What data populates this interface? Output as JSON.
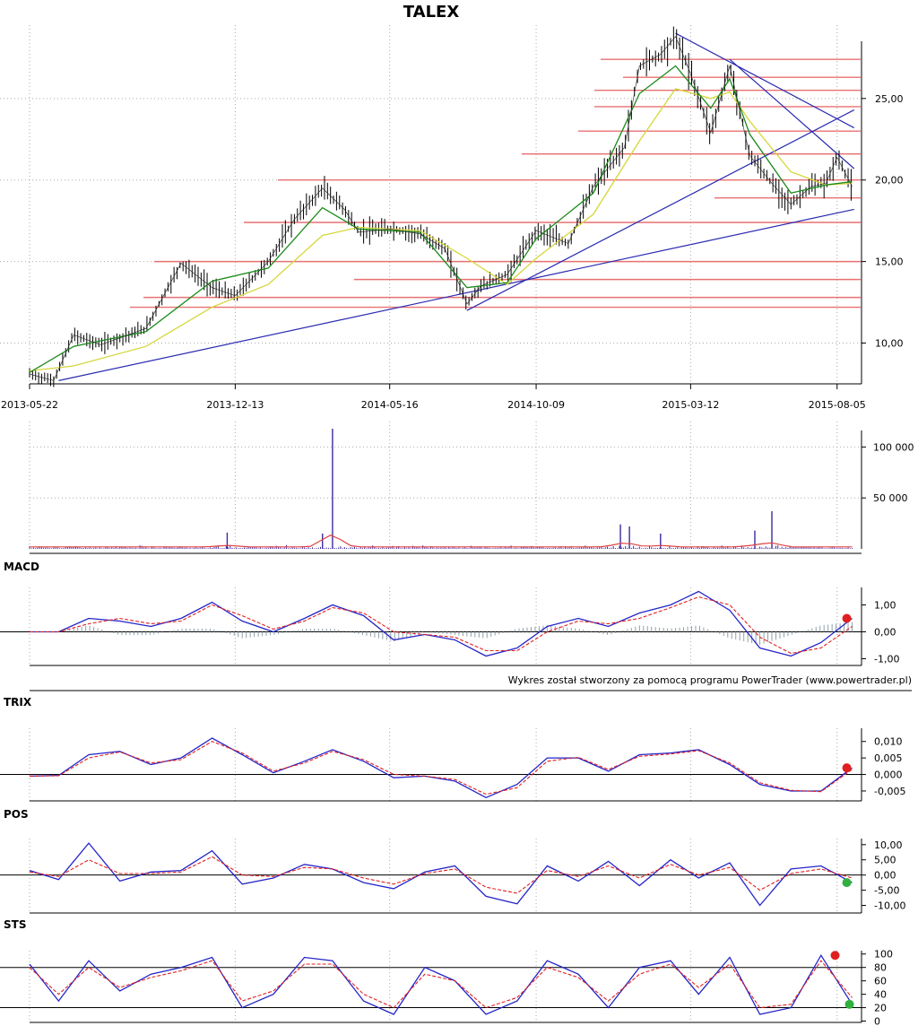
{
  "title": "TALEX",
  "footer_note": "Wykres został stworzony za pomocą programu PowerTrader (www.powertrader.pl)",
  "colors": {
    "candle": "#000000",
    "sma_short": "#1a8a1a",
    "sma_long": "#d6d63a",
    "support_line": "#e87070",
    "trend_line": "#2a2ab0",
    "volume_bar": "#3a2aa0",
    "volume_avg": "#e04040",
    "indicator_main": "#2424c8",
    "indicator_signal": "#e02020",
    "dot_red": "#e02020",
    "dot_green": "#30b040",
    "grid": "#aaaaaa"
  },
  "chart_data": [
    {
      "type": "line",
      "panel": "price",
      "title": "TALEX",
      "x_tick_labels": [
        "2013-05-22",
        "2013-12-13",
        "2014-05-16",
        "2014-10-09",
        "2015-03-12",
        "2015-08-05"
      ],
      "y_tick_labels": [
        "10,00",
        "15,00",
        "20,00",
        "25,00"
      ],
      "ylim": [
        7.5,
        29.5
      ],
      "grid": true,
      "series": [
        {
          "role": "close",
          "x": [
            "2013-05-22",
            "2013-06-15",
            "2013-07-05",
            "2013-08-01",
            "2013-09-15",
            "2013-10-20",
            "2013-11-20",
            "2013-12-13",
            "2014-01-15",
            "2014-02-10",
            "2014-03-10",
            "2014-04-01",
            "2014-04-15",
            "2014-05-16",
            "2014-06-15",
            "2014-07-10",
            "2014-08-01",
            "2014-08-15",
            "2014-09-10",
            "2014-10-09",
            "2014-11-10",
            "2014-12-05",
            "2015-01-05",
            "2015-01-20",
            "2015-02-10",
            "2015-02-25",
            "2015-03-12",
            "2015-04-01",
            "2015-04-20",
            "2015-05-10",
            "2015-06-01",
            "2015-06-20",
            "2015-07-10",
            "2015-07-25",
            "2015-08-05",
            "2015-08-20"
          ],
          "y": [
            8.1,
            7.7,
            10.5,
            9.9,
            10.9,
            14.9,
            13.4,
            12.9,
            15.0,
            17.6,
            19.5,
            18.2,
            16.8,
            17.0,
            16.7,
            15.8,
            12.4,
            13.5,
            14.2,
            16.9,
            16.1,
            19.6,
            22.0,
            27.0,
            27.7,
            28.8,
            26.5,
            22.9,
            27.0,
            21.5,
            19.8,
            18.5,
            19.6,
            19.8,
            21.4,
            19.6
          ]
        },
        {
          "role": "average-short",
          "x": [
            "2013-05-22",
            "2013-07-05",
            "2013-09-15",
            "2013-11-20",
            "2014-01-15",
            "2014-03-10",
            "2014-04-15",
            "2014-06-15",
            "2014-08-01",
            "2014-09-10",
            "2014-10-09",
            "2014-12-05",
            "2015-01-20",
            "2015-02-25",
            "2015-04-01",
            "2015-04-20",
            "2015-05-10",
            "2015-06-20",
            "2015-07-25",
            "2015-08-20"
          ],
          "y": [
            8.2,
            9.8,
            10.7,
            13.8,
            14.6,
            18.3,
            17.0,
            16.8,
            13.4,
            13.7,
            16.4,
            19.2,
            25.3,
            27.0,
            24.4,
            26.2,
            22.8,
            19.2,
            19.7,
            19.9
          ]
        },
        {
          "role": "average-long",
          "x": [
            "2013-05-22",
            "2013-07-05",
            "2013-09-15",
            "2013-11-20",
            "2014-01-15",
            "2014-03-10",
            "2014-04-15",
            "2014-06-15",
            "2014-08-01",
            "2014-09-10",
            "2014-10-09",
            "2014-12-05",
            "2015-01-20",
            "2015-02-25",
            "2015-04-01",
            "2015-04-20",
            "2015-05-10",
            "2015-06-20",
            "2015-07-25",
            "2015-08-20"
          ],
          "y": [
            8.3,
            8.6,
            9.8,
            12.2,
            13.6,
            16.6,
            17.1,
            16.9,
            15.2,
            13.6,
            15.2,
            17.9,
            22.4,
            25.6,
            25.0,
            25.4,
            23.6,
            20.5,
            19.7,
            19.8
          ]
        }
      ],
      "support_levels": [
        12.2,
        12.8,
        13.9,
        15.0,
        17.4,
        18.9,
        20.0,
        21.6,
        23.0,
        24.5,
        25.5,
        26.3,
        27.4
      ],
      "trend_lines": [
        {
          "x": [
            "2013-06-20",
            "2015-08-22"
          ],
          "y": [
            7.7,
            18.2
          ]
        },
        {
          "x": [
            "2014-08-01",
            "2015-08-22"
          ],
          "y": [
            12.0,
            24.3
          ]
        },
        {
          "x": [
            "2015-02-25",
            "2015-08-22"
          ],
          "y": [
            29.0,
            23.2
          ]
        },
        {
          "x": [
            "2015-04-20",
            "2015-08-22"
          ],
          "y": [
            27.4,
            20.7
          ]
        }
      ]
    },
    {
      "type": "bar",
      "panel": "volume",
      "y_tick_labels": [
        "50 000",
        "100 000"
      ],
      "ylim": [
        0,
        125000
      ],
      "spikes": [
        {
          "x": "2013-12-05",
          "value": 16000
        },
        {
          "x": "2014-03-20",
          "value": 118000
        },
        {
          "x": "2014-03-10",
          "value": 15000
        },
        {
          "x": "2015-01-01",
          "value": 24000
        },
        {
          "x": "2015-01-10",
          "value": 22000
        },
        {
          "x": "2015-05-15",
          "value": 18000
        },
        {
          "x": "2015-06-01",
          "value": 37000
        },
        {
          "x": "2015-02-10",
          "value": 15000
        }
      ],
      "baseline_level": 1500
    },
    {
      "type": "line",
      "panel": "MACD",
      "title": "MACD",
      "y_tick_labels": [
        "-1,00",
        "0,00",
        "1,00"
      ],
      "ylim": [
        -1.25,
        1.65
      ],
      "x": [
        "2013-05-22",
        "2013-06-20",
        "2013-07-20",
        "2013-08-20",
        "2013-09-20",
        "2013-10-20",
        "2013-11-20",
        "2013-12-20",
        "2014-01-20",
        "2014-02-20",
        "2014-03-20",
        "2014-04-20",
        "2014-05-20",
        "2014-06-20",
        "2014-07-20",
        "2014-08-20",
        "2014-09-20",
        "2014-10-20",
        "2014-11-20",
        "2014-12-20",
        "2015-01-20",
        "2015-02-20",
        "2015-03-20",
        "2015-04-20",
        "2015-05-20",
        "2015-06-20",
        "2015-07-20",
        "2015-08-20"
      ],
      "series": [
        {
          "role": "main",
          "values": [
            0.0,
            0.0,
            0.5,
            0.4,
            0.2,
            0.5,
            1.1,
            0.4,
            0.0,
            0.5,
            1.0,
            0.6,
            -0.3,
            -0.1,
            -0.3,
            -0.9,
            -0.6,
            0.2,
            0.5,
            0.2,
            0.7,
            1.0,
            1.5,
            0.8,
            -0.6,
            -0.9,
            -0.4,
            0.5
          ]
        },
        {
          "role": "signal",
          "values": [
            0.0,
            0.0,
            0.3,
            0.5,
            0.3,
            0.4,
            1.0,
            0.6,
            0.1,
            0.4,
            0.9,
            0.7,
            0.0,
            -0.1,
            -0.2,
            -0.7,
            -0.7,
            0.0,
            0.4,
            0.3,
            0.5,
            0.9,
            1.3,
            1.0,
            -0.2,
            -0.8,
            -0.6,
            0.2
          ]
        }
      ],
      "end_marker": "red"
    },
    {
      "type": "line",
      "panel": "TRIX",
      "title": "TRIX",
      "y_tick_labels": [
        "-0,005",
        "0,000",
        "0,005",
        "0,010"
      ],
      "ylim": [
        -0.008,
        0.014
      ],
      "x": [
        "2013-05-22",
        "2013-06-20",
        "2013-07-20",
        "2013-08-20",
        "2013-09-20",
        "2013-10-20",
        "2013-11-20",
        "2013-12-20",
        "2014-01-20",
        "2014-02-20",
        "2014-03-20",
        "2014-04-20",
        "2014-05-20",
        "2014-06-20",
        "2014-07-20",
        "2014-08-20",
        "2014-09-20",
        "2014-10-20",
        "2014-11-20",
        "2014-12-20",
        "2015-01-20",
        "2015-02-20",
        "2015-03-20",
        "2015-04-20",
        "2015-05-20",
        "2015-06-20",
        "2015-07-20",
        "2015-08-20"
      ],
      "series": [
        {
          "role": "main",
          "values": [
            -0.0005,
            -0.0003,
            0.006,
            0.007,
            0.003,
            0.005,
            0.011,
            0.006,
            0.0005,
            0.004,
            0.0075,
            0.004,
            -0.001,
            -0.0005,
            -0.002,
            -0.007,
            -0.003,
            0.005,
            0.005,
            0.001,
            0.006,
            0.0065,
            0.0075,
            0.003,
            -0.003,
            -0.005,
            -0.005,
            0.002
          ]
        },
        {
          "role": "signal",
          "values": [
            -0.0005,
            -0.0004,
            0.005,
            0.0068,
            0.0035,
            0.0045,
            0.01,
            0.0065,
            0.001,
            0.0035,
            0.007,
            0.0045,
            0.0,
            -0.0005,
            -0.0015,
            -0.006,
            -0.004,
            0.004,
            0.0052,
            0.0015,
            0.0055,
            0.0062,
            0.0072,
            0.0035,
            -0.0025,
            -0.0048,
            -0.0052,
            0.0015
          ]
        }
      ],
      "end_marker": "red"
    },
    {
      "type": "line",
      "panel": "POS",
      "title": "POS",
      "y_tick_labels": [
        "-10,00",
        "-5,00",
        "0,00",
        "5,00",
        "10,00"
      ],
      "ylim": [
        -12.5,
        12.0
      ],
      "x": [
        "2013-05-22",
        "2013-06-20",
        "2013-07-20",
        "2013-08-20",
        "2013-09-20",
        "2013-10-20",
        "2013-11-20",
        "2013-12-20",
        "2014-01-20",
        "2014-02-20",
        "2014-03-20",
        "2014-04-20",
        "2014-05-20",
        "2014-06-20",
        "2014-07-20",
        "2014-08-20",
        "2014-09-20",
        "2014-10-20",
        "2014-11-20",
        "2014-12-20",
        "2015-01-20",
        "2015-02-20",
        "2015-03-20",
        "2015-04-20",
        "2015-05-20",
        "2015-06-20",
        "2015-07-20",
        "2015-08-20"
      ],
      "series": [
        {
          "role": "main",
          "values": [
            1.5,
            -1.5,
            10.5,
            -2.0,
            1.0,
            1.5,
            8.0,
            -3.0,
            -1.0,
            3.5,
            2.0,
            -2.5,
            -4.5,
            1.0,
            3.0,
            -7.0,
            -9.5,
            3.0,
            -2.0,
            4.5,
            -3.5,
            5.0,
            -1.0,
            4.0,
            -10.0,
            2.0,
            3.0,
            -2.5
          ]
        },
        {
          "role": "signal",
          "values": [
            1.0,
            -0.5,
            5.0,
            0.5,
            0.5,
            1.0,
            6.0,
            0.0,
            -0.5,
            2.5,
            2.0,
            -1.0,
            -3.0,
            0.5,
            2.0,
            -4.0,
            -6.0,
            1.5,
            -0.5,
            3.0,
            -1.0,
            3.5,
            0.0,
            2.5,
            -5.0,
            0.5,
            2.0,
            -1.0
          ]
        }
      ],
      "end_marker": "green"
    },
    {
      "type": "line",
      "panel": "STS",
      "title": "STS",
      "y_tick_labels": [
        "0",
        "20",
        "40",
        "60",
        "80",
        "100"
      ],
      "ylim": [
        -2,
        105
      ],
      "reference_lines": [
        20,
        80
      ],
      "x": [
        "2013-05-22",
        "2013-06-20",
        "2013-07-20",
        "2013-08-20",
        "2013-09-20",
        "2013-10-20",
        "2013-11-20",
        "2013-12-20",
        "2014-01-20",
        "2014-02-20",
        "2014-03-20",
        "2014-04-20",
        "2014-05-20",
        "2014-06-20",
        "2014-07-20",
        "2014-08-20",
        "2014-09-20",
        "2014-10-20",
        "2014-11-20",
        "2014-12-20",
        "2015-01-20",
        "2015-02-20",
        "2015-03-20",
        "2015-04-20",
        "2015-05-20",
        "2015-06-20",
        "2015-07-20",
        "2015-08-20"
      ],
      "series": [
        {
          "role": "main",
          "values": [
            85,
            30,
            90,
            45,
            70,
            80,
            95,
            20,
            40,
            95,
            90,
            30,
            10,
            80,
            60,
            10,
            30,
            90,
            70,
            20,
            80,
            90,
            40,
            95,
            10,
            20,
            98,
            25
          ]
        },
        {
          "role": "signal",
          "values": [
            80,
            40,
            80,
            50,
            65,
            75,
            90,
            30,
            45,
            85,
            85,
            40,
            20,
            70,
            60,
            20,
            35,
            80,
            65,
            30,
            70,
            85,
            50,
            85,
            20,
            25,
            90,
            35
          ]
        }
      ],
      "end_marker_top": "red",
      "end_marker_bottom": "green"
    }
  ]
}
